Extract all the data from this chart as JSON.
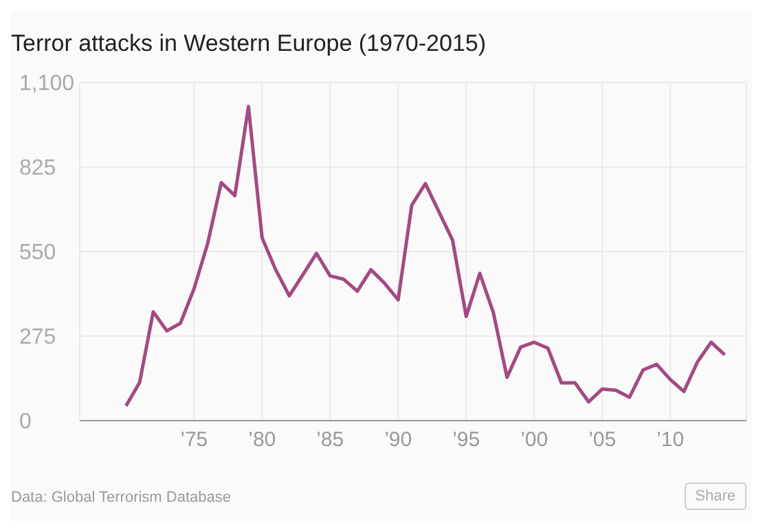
{
  "chart_data": {
    "type": "line",
    "title": "Terror attacks in Western Europe (1970-2015)",
    "x": [
      1970,
      1971,
      1972,
      1973,
      1974,
      1975,
      1976,
      1977,
      1978,
      1979,
      1980,
      1981,
      1982,
      1983,
      1984,
      1985,
      1986,
      1987,
      1988,
      1989,
      1990,
      1991,
      1992,
      1994,
      1995,
      1996,
      1997,
      1998,
      1999,
      2000,
      2001,
      2002,
      2003,
      2004,
      2005,
      2006,
      2007,
      2008,
      2009,
      2010,
      2011,
      2012,
      2013,
      2014
    ],
    "series": [
      {
        "color": "#a34a82",
        "values": [
          48,
          124,
          354,
          292,
          317,
          429,
          576,
          774,
          732,
          1022,
          595,
          491,
          406,
          475,
          544,
          471,
          460,
          421,
          491,
          447,
          393,
          701,
          771,
          587,
          339,
          479,
          351,
          141,
          239,
          255,
          236,
          123,
          123,
          61,
          103,
          99,
          76,
          165,
          183,
          134,
          95,
          191,
          255,
          214
        ]
      }
    ],
    "xlim": [
      1966.6,
      2015.6
    ],
    "xticks": [
      {
        "value": 1975,
        "label": "’75"
      },
      {
        "value": 1980,
        "label": "’80"
      },
      {
        "value": 1985,
        "label": "’85"
      },
      {
        "value": 1990,
        "label": "’90"
      },
      {
        "value": 1995,
        "label": "’95"
      },
      {
        "value": 2000,
        "label": "’00"
      },
      {
        "value": 2005,
        "label": "’05"
      },
      {
        "value": 2010,
        "label": "’10"
      }
    ],
    "ylim": [
      0,
      1100
    ],
    "yticks": [
      0,
      275,
      550,
      825,
      {
        "value": 1100,
        "label": "1,100"
      }
    ],
    "grid": true,
    "legend": false,
    "marker": "none",
    "line_style": "solid",
    "annotations": [
      "Data: Global Terrorism Database",
      "Share"
    ]
  }
}
